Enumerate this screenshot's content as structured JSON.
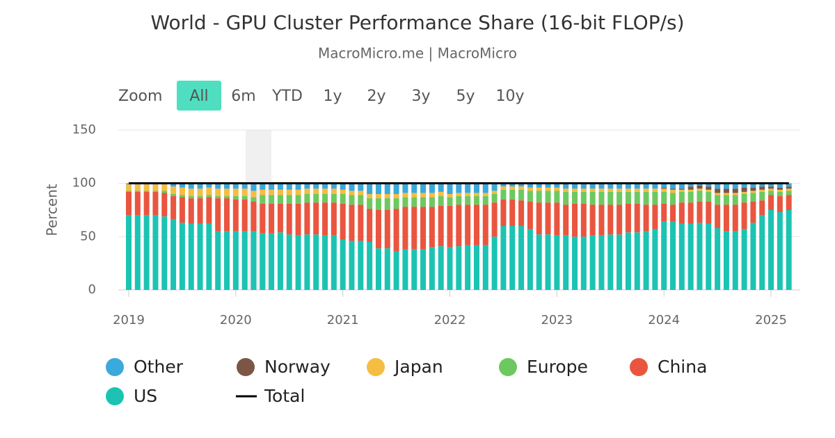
{
  "chart_data": {
    "type": "stacked-bar",
    "title": "World - GPU Cluster Performance Share (16-bit FLOP/s)",
    "subtitle": "MacroMicro.me | MacroMicro",
    "zoom_label": "Zoom",
    "zoom_buttons": [
      "All",
      "6m",
      "YTD",
      "1y",
      "2y",
      "3y",
      "5y",
      "10y"
    ],
    "ylabel": "Percent",
    "ylim": [
      0,
      150
    ],
    "yticks": [
      0,
      50,
      100,
      150
    ],
    "grid": true,
    "xticks": [
      "2019",
      "2020",
      "2021",
      "2022",
      "2023",
      "2024",
      "2025"
    ],
    "x": [
      "2019-01",
      "2019-02",
      "2019-03",
      "2019-04",
      "2019-05",
      "2019-06",
      "2019-07",
      "2019-08",
      "2019-09",
      "2019-10",
      "2019-11",
      "2019-12",
      "2020-01",
      "2020-02",
      "2020-03",
      "2020-04",
      "2020-05",
      "2020-06",
      "2020-07",
      "2020-08",
      "2020-09",
      "2020-10",
      "2020-11",
      "2020-12",
      "2021-01",
      "2021-02",
      "2021-03",
      "2021-04",
      "2021-05",
      "2021-06",
      "2021-07",
      "2021-08",
      "2021-09",
      "2021-10",
      "2021-11",
      "2021-12",
      "2022-01",
      "2022-02",
      "2022-03",
      "2022-04",
      "2022-05",
      "2022-06",
      "2022-07",
      "2022-08",
      "2022-09",
      "2022-10",
      "2022-11",
      "2022-12",
      "2023-01",
      "2023-02",
      "2023-03",
      "2023-04",
      "2023-05",
      "2023-06",
      "2023-07",
      "2023-08",
      "2023-09",
      "2023-10",
      "2023-11",
      "2023-12",
      "2024-01",
      "2024-02",
      "2024-03",
      "2024-04",
      "2024-05",
      "2024-06",
      "2024-07",
      "2024-08",
      "2024-09",
      "2024-10",
      "2024-11",
      "2024-12",
      "2025-01",
      "2025-02",
      "2025-03"
    ],
    "series": [
      {
        "name": "Other",
        "color": "#3aa9dc",
        "values": [
          1,
          1,
          1,
          1,
          1,
          3,
          4,
          5,
          5,
          4,
          5,
          5,
          5,
          5,
          7,
          6,
          6,
          6,
          6,
          6,
          5,
          5,
          5,
          5,
          6,
          7,
          7,
          10,
          10,
          10,
          10,
          9,
          9,
          9,
          9,
          8,
          10,
          9,
          9,
          9,
          9,
          7,
          3,
          3,
          3,
          4,
          4,
          4,
          4,
          5,
          5,
          5,
          5,
          5,
          5,
          5,
          5,
          5,
          5,
          5,
          4,
          5,
          5,
          3,
          2,
          3,
          5,
          5,
          5,
          4,
          4,
          3,
          3,
          4,
          3
        ]
      },
      {
        "name": "Norway",
        "color": "#7d5547",
        "values": [
          0,
          0,
          0,
          0,
          0,
          0,
          0,
          0,
          0,
          0,
          0,
          0,
          0,
          0,
          0,
          0,
          0,
          0,
          0,
          0,
          0,
          0,
          0,
          0,
          0,
          0,
          0,
          0,
          0,
          0,
          0,
          0,
          0,
          0,
          0,
          0,
          0,
          0,
          0,
          0,
          0,
          0,
          0,
          0,
          0,
          0,
          0,
          0,
          0,
          0,
          0,
          0,
          0,
          0,
          0,
          0,
          0,
          0,
          0,
          0,
          1,
          1,
          1,
          3,
          3,
          3,
          4,
          4,
          4,
          4,
          3,
          3,
          2,
          2,
          2
        ]
      },
      {
        "name": "Japan",
        "color": "#f5bd42",
        "values": [
          6,
          6,
          6,
          6,
          6,
          7,
          7,
          7,
          7,
          7,
          7,
          7,
          7,
          7,
          6,
          5,
          5,
          5,
          5,
          5,
          5,
          5,
          5,
          5,
          4,
          4,
          4,
          4,
          4,
          4,
          4,
          4,
          4,
          4,
          4,
          4,
          3,
          3,
          3,
          3,
          3,
          3,
          3,
          3,
          3,
          3,
          3,
          3,
          3,
          3,
          3,
          3,
          3,
          3,
          3,
          3,
          3,
          3,
          3,
          3,
          3,
          3,
          2,
          2,
          2,
          2,
          2,
          2,
          2,
          2,
          2,
          2,
          2,
          2,
          2
        ]
      },
      {
        "name": "Europe",
        "color": "#6dc95f",
        "values": [
          1,
          1,
          1,
          1,
          2,
          2,
          2,
          2,
          2,
          2,
          2,
          2,
          3,
          3,
          4,
          8,
          8,
          8,
          8,
          8,
          8,
          8,
          8,
          8,
          9,
          9,
          9,
          10,
          11,
          11,
          10,
          9,
          9,
          9,
          9,
          9,
          8,
          8,
          8,
          8,
          8,
          8,
          9,
          9,
          10,
          10,
          11,
          11,
          11,
          12,
          11,
          11,
          12,
          12,
          12,
          12,
          11,
          11,
          12,
          12,
          11,
          11,
          10,
          10,
          10,
          9,
          9,
          9,
          9,
          8,
          8,
          8,
          4,
          4,
          4
        ]
      },
      {
        "name": "China",
        "color": "#e9553f",
        "values": [
          22,
          22,
          22,
          22,
          22,
          22,
          24,
          24,
          24,
          25,
          31,
          31,
          30,
          30,
          28,
          28,
          28,
          27,
          29,
          30,
          30,
          30,
          31,
          31,
          34,
          34,
          34,
          31,
          36,
          36,
          40,
          40,
          40,
          40,
          38,
          38,
          39,
          39,
          38,
          38,
          38,
          32,
          25,
          25,
          24,
          26,
          30,
          30,
          31,
          29,
          31,
          31,
          29,
          29,
          28,
          28,
          27,
          27,
          25,
          23,
          17,
          16,
          20,
          20,
          20,
          21,
          22,
          25,
          25,
          25,
          20,
          14,
          14,
          15,
          14
        ]
      },
      {
        "name": "US",
        "color": "#1cc3b3",
        "values": [
          70,
          70,
          70,
          70,
          69,
          66,
          63,
          62,
          62,
          62,
          55,
          55,
          55,
          55,
          55,
          53,
          53,
          54,
          52,
          51,
          52,
          52,
          51,
          51,
          47,
          46,
          46,
          45,
          39,
          39,
          36,
          38,
          38,
          38,
          40,
          41,
          40,
          41,
          42,
          42,
          42,
          50,
          60,
          60,
          60,
          57,
          52,
          52,
          51,
          51,
          50,
          50,
          51,
          51,
          52,
          52,
          54,
          54,
          55,
          57,
          64,
          64,
          62,
          62,
          63,
          62,
          58,
          55,
          55,
          57,
          63,
          70,
          75,
          73,
          75
        ]
      },
      {
        "name": "Total",
        "color": "#000000",
        "type": "line",
        "values": [
          100,
          100,
          100,
          100,
          100,
          100,
          100,
          100,
          100,
          100,
          100,
          100,
          100,
          100,
          100,
          100,
          100,
          100,
          100,
          100,
          100,
          100,
          100,
          100,
          100,
          100,
          100,
          100,
          100,
          100,
          100,
          100,
          100,
          100,
          100,
          100,
          100,
          100,
          100,
          100,
          100,
          100,
          100,
          100,
          100,
          100,
          100,
          100,
          100,
          100,
          100,
          100,
          100,
          100,
          100,
          100,
          100,
          100,
          100,
          100,
          100,
          100,
          100,
          100,
          100,
          100,
          100,
          100,
          100,
          100,
          100,
          100,
          100,
          100,
          100
        ]
      }
    ]
  }
}
